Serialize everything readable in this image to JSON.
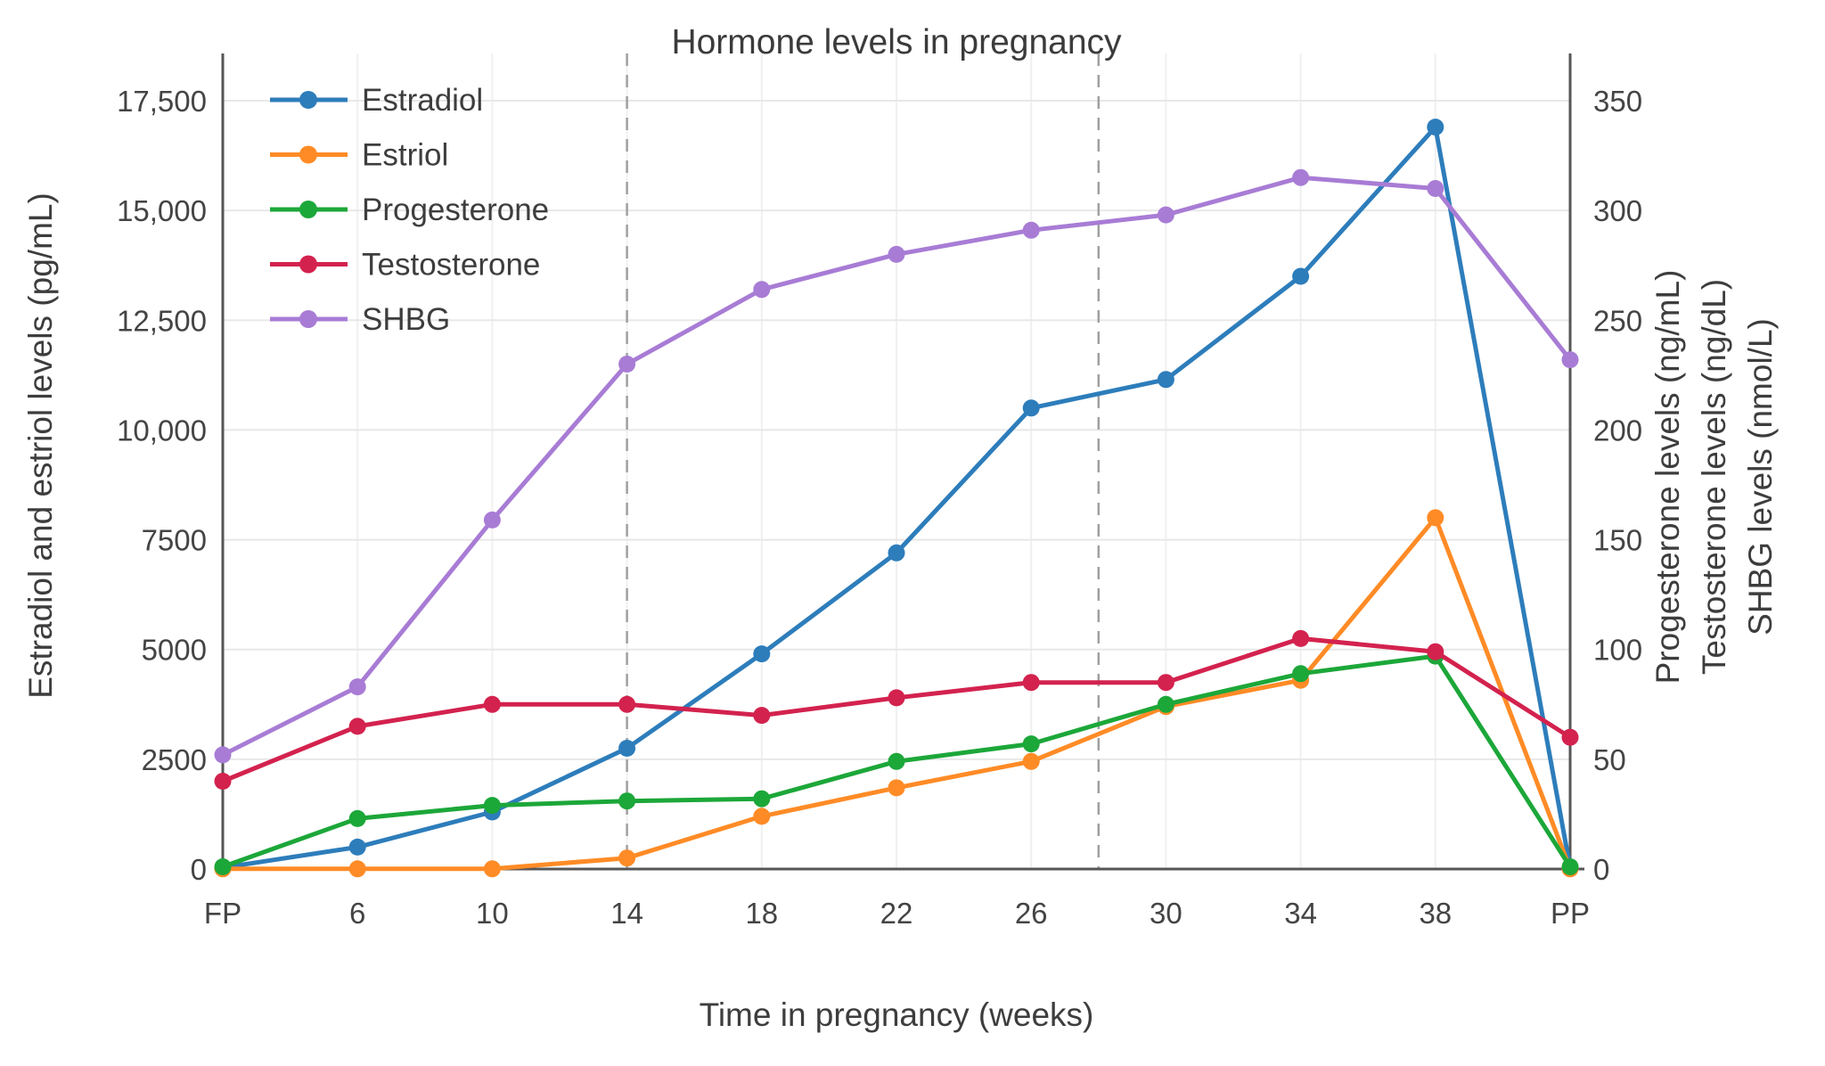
{
  "chart_data": {
    "type": "line",
    "title": "Hormone levels in pregnancy",
    "xlabel": "Time in pregnancy (weeks)",
    "ylabel_left": "Estradiol and estriol levels (pg/mL)",
    "ylabel_right": [
      "Progesterone levels (ng/mL)",
      "Testosterone levels (ng/dL)",
      "SHBG levels (nmol/L)"
    ],
    "categories": [
      "FP",
      "6",
      "10",
      "14",
      "18",
      "22",
      "26",
      "30",
      "34",
      "38",
      "PP"
    ],
    "left_axis": {
      "ticks": [
        0,
        2500,
        5000,
        7500,
        10000,
        12500,
        15000,
        17500
      ],
      "tick_labels": [
        "0",
        "2500",
        "5000",
        "7500",
        "10,000",
        "12,500",
        "15,000",
        "17,500"
      ],
      "range": [
        0,
        18200
      ]
    },
    "right_axis": {
      "ticks": [
        0,
        50,
        100,
        150,
        200,
        250,
        300,
        350
      ],
      "tick_labels": [
        "0",
        "50",
        "100",
        "150",
        "200",
        "250",
        "300",
        "350"
      ],
      "range": [
        0,
        364
      ],
      "scale_to_left": 50
    },
    "series": [
      {
        "name": "Estradiol",
        "axis": "left",
        "color": "#2d7dbb",
        "values": [
          30,
          500,
          1300,
          2750,
          4900,
          7200,
          10500,
          11150,
          13500,
          16900,
          30
        ]
      },
      {
        "name": "Estriol",
        "axis": "left",
        "color": "#ff8b26",
        "values": [
          5,
          5,
          5,
          250,
          1200,
          1850,
          2450,
          3700,
          4300,
          8000,
          5
        ]
      },
      {
        "name": "Progesterone",
        "axis": "right",
        "color": "#1ca739",
        "values": [
          1,
          23,
          29,
          31,
          32,
          49,
          57,
          75,
          89,
          97,
          1
        ]
      },
      {
        "name": "Testosterone",
        "axis": "right",
        "color": "#d3224e",
        "values": [
          40,
          65,
          75,
          75,
          70,
          78,
          85,
          85,
          105,
          99,
          60
        ]
      },
      {
        "name": "SHBG",
        "axis": "right",
        "color": "#a87cd5",
        "values": [
          52,
          83,
          159,
          230,
          264,
          280,
          291,
          298,
          315,
          310,
          232
        ]
      }
    ],
    "annotations": {
      "dashed_vlines": [
        {
          "week": 14,
          "index": 3
        },
        {
          "week": 28,
          "index": 6.5
        }
      ],
      "solid_vline_indices": [
        0,
        10
      ]
    },
    "legend_position": "top-left",
    "grid": true,
    "colors": {
      "grid_h": "#e8e8e8",
      "grid_v": "#f0f0f0",
      "axis_line": "#565656",
      "dashed_line": "#a0a0a0",
      "text": "#3d3d3d"
    }
  }
}
